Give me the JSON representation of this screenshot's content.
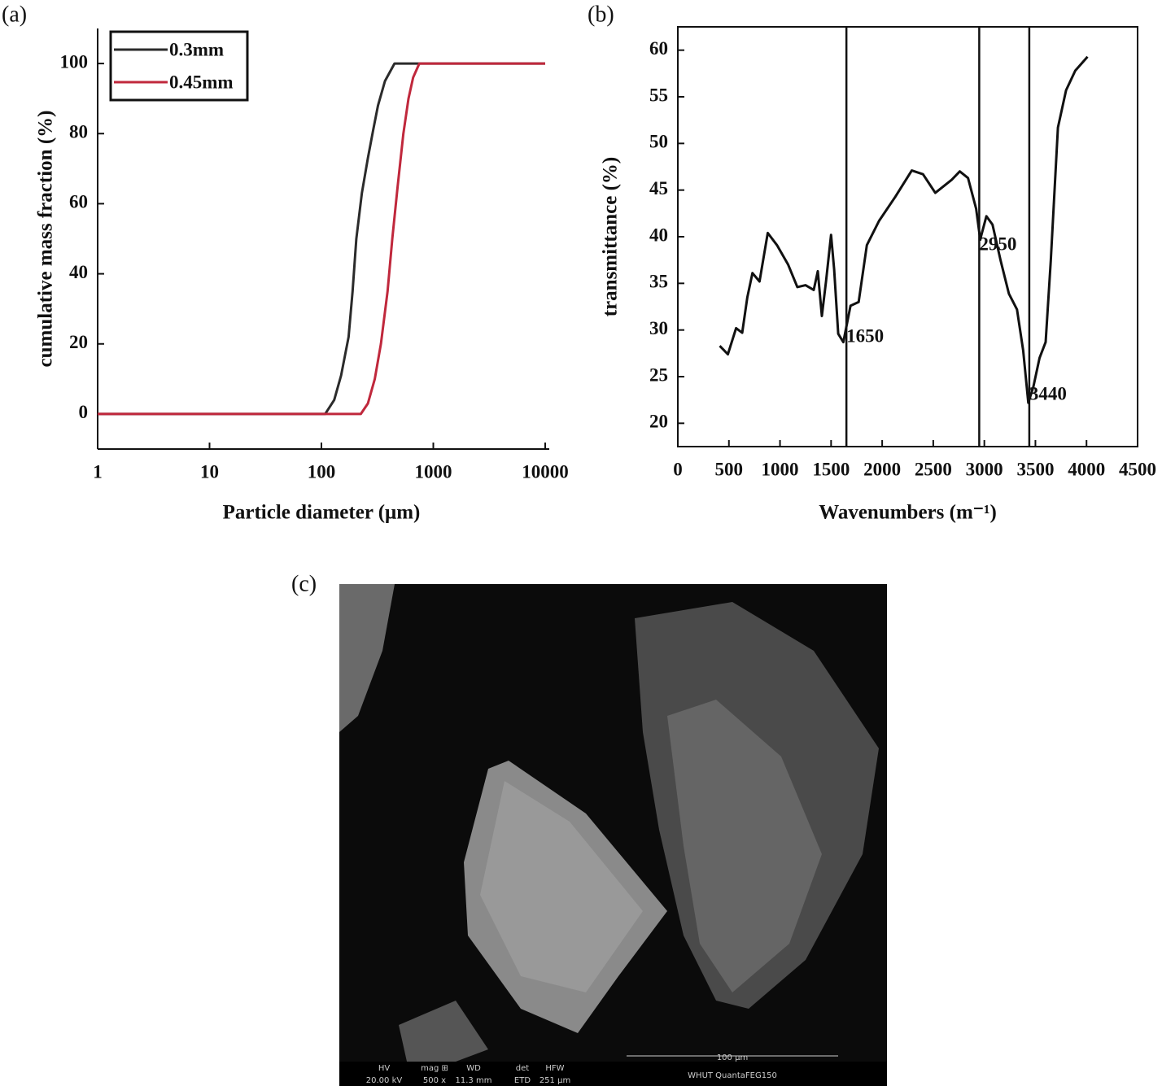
{
  "chart_data": [
    {
      "type": "line",
      "panel_label": "(a)",
      "x_label": "Particle diameter (μm)",
      "y_label": "cumulative mass fraction (%)",
      "x_scale": "log",
      "xlim": [
        1,
        10000
      ],
      "xticks": [
        1,
        10,
        100,
        1000,
        10000
      ],
      "ylim": [
        -10,
        110
      ],
      "yticks": [
        0,
        20,
        40,
        60,
        80,
        100
      ],
      "legend": "upper left",
      "series": [
        {
          "name": "0.3mm",
          "color": "#2b2b2b",
          "x": [
            1,
            108,
            130,
            150,
            175,
            190,
            205,
            230,
            260,
            290,
            320,
            370,
            450,
            10000
          ],
          "values": [
            0,
            0,
            4,
            11,
            22,
            35,
            50,
            63,
            73,
            81,
            88,
            95,
            100,
            100
          ]
        },
        {
          "name": "0.45mm",
          "color": "#c0283c",
          "x": [
            1,
            225,
            260,
            300,
            340,
            390,
            430,
            480,
            540,
            600,
            660,
            750,
            10000
          ],
          "values": [
            0,
            0,
            3,
            10,
            20,
            35,
            50,
            65,
            80,
            90,
            96,
            100,
            100
          ]
        }
      ]
    },
    {
      "type": "line",
      "panel_label": "(b)",
      "x_label": "Wavenumbers (m⁻¹)",
      "y_label": "transmittance (%)",
      "xlim": [
        0,
        4500
      ],
      "xticks": [
        0,
        500,
        1000,
        1500,
        2000,
        2500,
        3000,
        3500,
        4000,
        4500
      ],
      "ylim": [
        17.5,
        62.5
      ],
      "yticks": [
        20,
        25,
        30,
        35,
        40,
        45,
        50,
        55,
        60
      ],
      "vlines": [
        1650,
        2950,
        3440
      ],
      "series": [
        {
          "color": "#111111",
          "x": [
            410,
            490,
            570,
            630,
            680,
            730,
            800,
            880,
            970,
            1080,
            1170,
            1250,
            1330,
            1370,
            1410,
            1450,
            1500,
            1530,
            1570,
            1620,
            1690,
            1770,
            1850,
            1970,
            2130,
            2290,
            2400,
            2520,
            2680,
            2760,
            2840,
            2920,
            2960,
            3020,
            3080,
            3160,
            3240,
            3320,
            3380,
            3430,
            3480,
            3540,
            3600,
            3650,
            3720,
            3800,
            3890,
            4010
          ],
          "values": [
            28.3,
            27.4,
            30.2,
            29.7,
            33.5,
            36.1,
            35.2,
            40.4,
            39.1,
            37.0,
            34.6,
            34.8,
            34.3,
            36.3,
            31.5,
            35.2,
            40.2,
            36.5,
            29.6,
            28.7,
            32.6,
            33.0,
            39.1,
            41.7,
            44.3,
            47.1,
            46.7,
            44.7,
            46.1,
            47.0,
            46.3,
            43.0,
            39.7,
            42.2,
            41.3,
            37.4,
            33.9,
            32.2,
            27.8,
            22.2,
            23.9,
            27.0,
            28.7,
            37.4,
            51.7,
            55.7,
            57.8,
            59.3
          ]
        }
      ]
    }
  ],
  "sem_image": {
    "panel_label": "(c)",
    "info_headers": [
      "HV",
      "mag ⊞",
      "WD",
      "det",
      "HFW"
    ],
    "info_values": [
      "20.00 kV",
      "500 x",
      "11.3 mm",
      "ETD",
      "251 µm"
    ],
    "scale_bar": "100 µm",
    "instrument": "WHUT QuantaFEG150"
  }
}
